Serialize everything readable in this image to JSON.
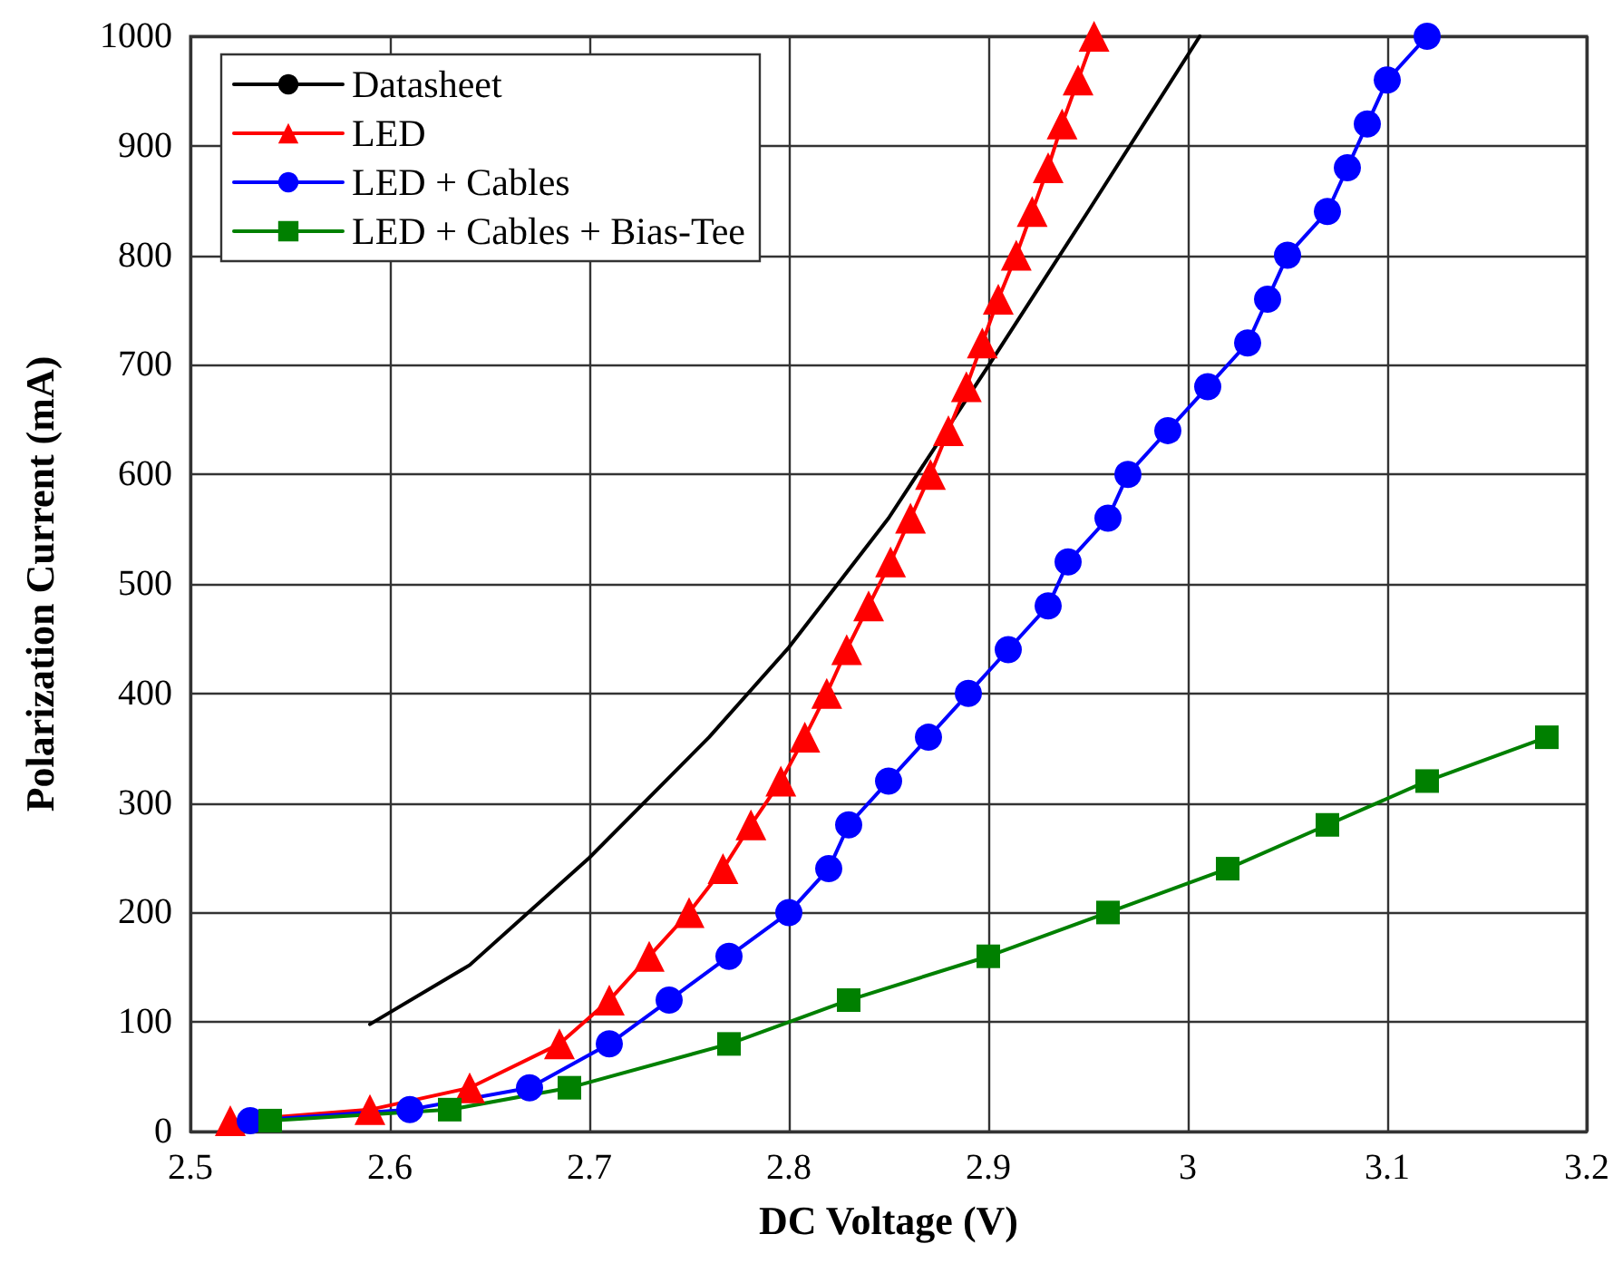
{
  "chart_data": {
    "type": "line",
    "xlabel": "DC Voltage (V)",
    "ylabel": "Polarization Current (mA)",
    "xlim": [
      2.5,
      3.2
    ],
    "xticks": [
      2.5,
      2.6,
      2.7,
      2.8,
      2.9,
      3,
      3.1,
      3.2
    ],
    "ylim": [
      0,
      1000
    ],
    "yticks": [
      0,
      100,
      200,
      300,
      400,
      500,
      600,
      700,
      800,
      900,
      1000
    ],
    "grid": true,
    "legend": "top left",
    "line_style": "solid",
    "series": [
      {
        "name": "Datasheet",
        "color": "#000000",
        "marker": "none",
        "x": [
          2.59,
          2.64,
          2.7,
          2.76,
          2.8,
          2.85,
          2.9,
          2.95,
          3.006
        ],
        "values": [
          98,
          152,
          250,
          360,
          442,
          560,
          699,
          840,
          1000
        ]
      },
      {
        "name": "LED",
        "color": "#ff0000",
        "marker": "triangle",
        "x": [
          2.52,
          2.59,
          2.64,
          2.685,
          2.71,
          2.73,
          2.75,
          2.767,
          2.781,
          2.796,
          2.808,
          2.819,
          2.829,
          2.84,
          2.851,
          2.861,
          2.871,
          2.88,
          2.889,
          2.897,
          2.905,
          2.914,
          2.922,
          2.93,
          2.937,
          2.945,
          2.953
        ],
        "values": [
          10,
          20,
          40,
          80,
          120,
          160,
          200,
          240,
          280,
          320,
          360,
          400,
          440,
          480,
          520,
          560,
          600,
          640,
          680,
          720,
          760,
          800,
          840,
          880,
          920,
          960,
          1000
        ]
      },
      {
        "name": "LED + Cables",
        "color": "#0000ff",
        "marker": "circle",
        "x": [
          2.53,
          2.61,
          2.67,
          2.71,
          2.74,
          2.77,
          2.8,
          2.82,
          2.83,
          2.85,
          2.87,
          2.89,
          2.91,
          2.93,
          2.94,
          2.96,
          2.97,
          2.99,
          3.01,
          3.03,
          3.04,
          3.05,
          3.07,
          3.08,
          3.09,
          3.1,
          3.12
        ],
        "values": [
          10,
          20,
          40,
          80,
          120,
          160,
          200,
          240,
          280,
          320,
          360,
          400,
          440,
          480,
          520,
          560,
          600,
          640,
          680,
          720,
          760,
          800,
          840,
          880,
          920,
          960,
          1000
        ]
      },
      {
        "name": "LED + Cables + Bias-Tee",
        "color": "#008000",
        "marker": "square",
        "x": [
          2.54,
          2.63,
          2.69,
          2.77,
          2.83,
          2.9,
          2.96,
          3.02,
          3.07,
          3.12,
          3.18
        ],
        "values": [
          10,
          20,
          40,
          80,
          120,
          160,
          200,
          240,
          280,
          320,
          360
        ]
      }
    ]
  }
}
